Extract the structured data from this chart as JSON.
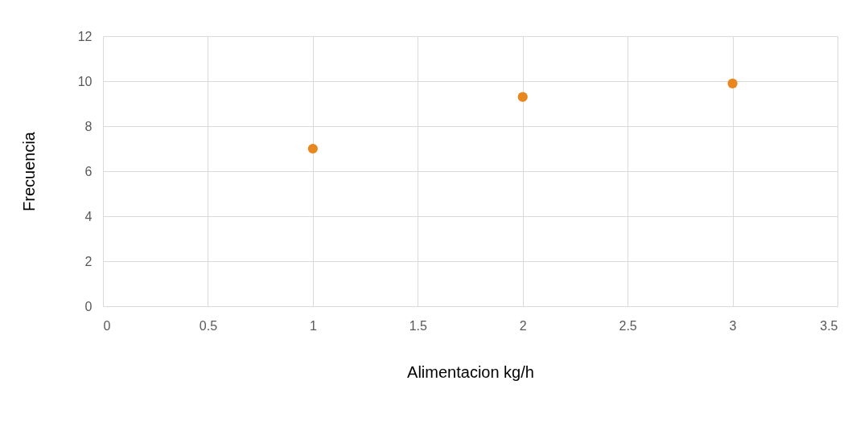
{
  "chart_data": {
    "type": "scatter",
    "xlabel": "Alimentacion kg/h",
    "ylabel": "Frecuencia",
    "x": [
      1,
      2,
      3
    ],
    "series": [
      {
        "color": "#e8871e",
        "values": [
          7,
          9.3,
          9.9
        ]
      }
    ],
    "xlim": [
      0,
      3.5
    ],
    "xticks": [
      0,
      0.5,
      1,
      1.5,
      2,
      2.5,
      3,
      3.5
    ],
    "ylim": [
      0,
      12
    ],
    "yticks": [
      0,
      2,
      4,
      6,
      8,
      10,
      12
    ],
    "grid": true,
    "marker": "circle"
  }
}
